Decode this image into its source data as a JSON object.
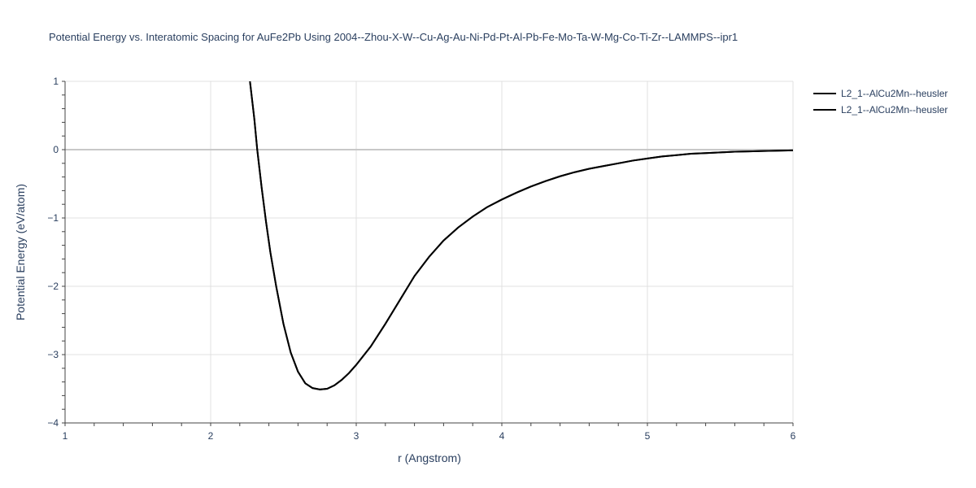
{
  "chart_data": {
    "type": "line",
    "title": "Potential Energy vs. Interatomic Spacing for AuFe2Pb Using 2004--Zhou-X-W--Cu-Ag-Au-Ni-Pd-Pt-Al-Pb-Fe-Mo-Ta-W-Mg-Co-Ti-Zr--LAMMPS--ipr1",
    "xlabel": "r (Angstrom)",
    "ylabel": "Potential Energy (eV/atom)",
    "xlim": [
      1,
      6
    ],
    "ylim": [
      -4,
      1
    ],
    "xticks": [
      1,
      2,
      3,
      4,
      5,
      6
    ],
    "yticks": [
      -4,
      -3,
      -2,
      -1,
      0,
      1
    ],
    "xtick_labels": [
      "1",
      "2",
      "3",
      "4",
      "5",
      "6"
    ],
    "ytick_labels": [
      "−4",
      "−3",
      "−2",
      "−1",
      "0",
      "1"
    ],
    "grid": true,
    "legend_position": "top-right",
    "series": [
      {
        "name": "L2_1--AlCu2Mn--heusler",
        "color": "#000000",
        "x": [
          2.27,
          2.3,
          2.32,
          2.35,
          2.38,
          2.41,
          2.45,
          2.5,
          2.55,
          2.6,
          2.65,
          2.7,
          2.75,
          2.8,
          2.85,
          2.9,
          2.95,
          3.0,
          3.1,
          3.2,
          3.3,
          3.4,
          3.5,
          3.6,
          3.7,
          3.8,
          3.9,
          4.0,
          4.1,
          4.2,
          4.3,
          4.4,
          4.5,
          4.6,
          4.7,
          4.8,
          4.9,
          5.0,
          5.1,
          5.2,
          5.3,
          5.4,
          5.5,
          5.6,
          5.7,
          5.8,
          5.9,
          6.0
        ],
        "y": [
          1.0,
          0.45,
          0.0,
          -0.55,
          -1.05,
          -1.5,
          -2.0,
          -2.55,
          -2.97,
          -3.25,
          -3.42,
          -3.49,
          -3.51,
          -3.5,
          -3.45,
          -3.37,
          -3.27,
          -3.15,
          -2.88,
          -2.55,
          -2.2,
          -1.85,
          -1.57,
          -1.33,
          -1.14,
          -0.98,
          -0.84,
          -0.73,
          -0.63,
          -0.54,
          -0.46,
          -0.39,
          -0.33,
          -0.28,
          -0.24,
          -0.2,
          -0.16,
          -0.13,
          -0.1,
          -0.08,
          -0.06,
          -0.05,
          -0.04,
          -0.03,
          -0.025,
          -0.02,
          -0.015,
          -0.01
        ]
      },
      {
        "name": "L2_1--AlCu2Mn--heusler",
        "color": "#000000",
        "x": [
          2.27,
          2.3,
          2.32,
          2.35,
          2.38,
          2.41,
          2.45,
          2.5,
          2.55,
          2.6,
          2.65,
          2.7,
          2.75,
          2.8,
          2.85,
          2.9,
          2.95,
          3.0,
          3.1,
          3.2,
          3.3,
          3.4,
          3.5,
          3.6,
          3.7,
          3.8,
          3.9,
          4.0,
          4.1,
          4.2,
          4.3,
          4.4,
          4.5,
          4.6,
          4.7,
          4.8,
          4.9,
          5.0,
          5.1,
          5.2,
          5.3,
          5.4,
          5.5,
          5.6,
          5.7,
          5.8,
          5.9,
          6.0
        ],
        "y": [
          1.0,
          0.45,
          0.0,
          -0.55,
          -1.05,
          -1.5,
          -2.0,
          -2.55,
          -2.97,
          -3.25,
          -3.42,
          -3.49,
          -3.51,
          -3.5,
          -3.45,
          -3.37,
          -3.27,
          -3.15,
          -2.88,
          -2.55,
          -2.2,
          -1.85,
          -1.57,
          -1.33,
          -1.14,
          -0.98,
          -0.84,
          -0.73,
          -0.63,
          -0.54,
          -0.46,
          -0.39,
          -0.33,
          -0.28,
          -0.24,
          -0.2,
          -0.16,
          -0.13,
          -0.1,
          -0.08,
          -0.06,
          -0.05,
          -0.04,
          -0.03,
          -0.025,
          -0.02,
          -0.015,
          -0.01
        ]
      }
    ]
  }
}
